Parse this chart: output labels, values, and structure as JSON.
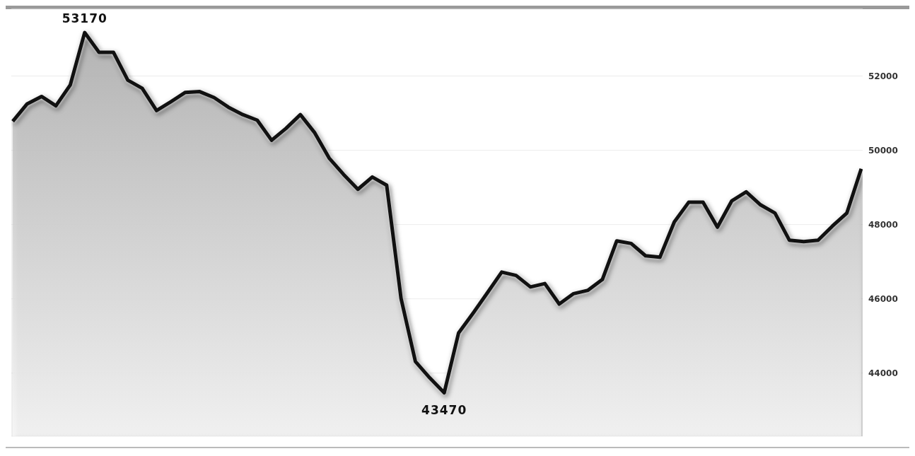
{
  "chart_data": {
    "type": "area",
    "categories": [
      null,
      null,
      null,
      null,
      null,
      null,
      null,
      null,
      null,
      null,
      null,
      null,
      null,
      null,
      null,
      null,
      null,
      null,
      null,
      null,
      null,
      null,
      null,
      null,
      null,
      null,
      null,
      null,
      null,
      null,
      null,
      null,
      null,
      null,
      null,
      null,
      null,
      null,
      null,
      null,
      null,
      null,
      null,
      null,
      null,
      null,
      null,
      null,
      null,
      null,
      null,
      null,
      null,
      null,
      null,
      null,
      null,
      null,
      null,
      null
    ],
    "series": [
      {
        "color": "#111111",
        "values": [
          50780,
          51250,
          51450,
          51200,
          51760,
          53170,
          52640,
          52640,
          51890,
          51670,
          51070,
          51310,
          51560,
          51580,
          51420,
          51160,
          50960,
          50810,
          50270,
          50590,
          50960,
          50470,
          49790,
          49350,
          48950,
          49280,
          49060,
          46010,
          44310,
          43870,
          43470,
          45080,
          45610,
          46160,
          46720,
          46630,
          46320,
          46410,
          45860,
          46140,
          46230,
          46520,
          47560,
          47490,
          47160,
          47120,
          48070,
          48600,
          48600,
          47930,
          48640,
          48880,
          48530,
          48310,
          47580,
          47540,
          47580,
          47960,
          48310,
          49500
        ],
        "value_labels": [
          null,
          null,
          null,
          null,
          null,
          "53170",
          null,
          null,
          null,
          null,
          null,
          null,
          null,
          null,
          null,
          null,
          null,
          null,
          null,
          null,
          null,
          null,
          null,
          null,
          null,
          null,
          null,
          null,
          null,
          null,
          "43470",
          null,
          null,
          null,
          null,
          null,
          null,
          null,
          null,
          null,
          null,
          null,
          null,
          null,
          null,
          null,
          null,
          null,
          null,
          null,
          null,
          null,
          null,
          null,
          null,
          null,
          null,
          null,
          null,
          null
        ]
      }
    ],
    "ylim": [
      42300,
      53800
    ],
    "yticks": [
      44000,
      46000,
      48000,
      50000,
      52000
    ],
    "grid": "y",
    "legend": false
  }
}
